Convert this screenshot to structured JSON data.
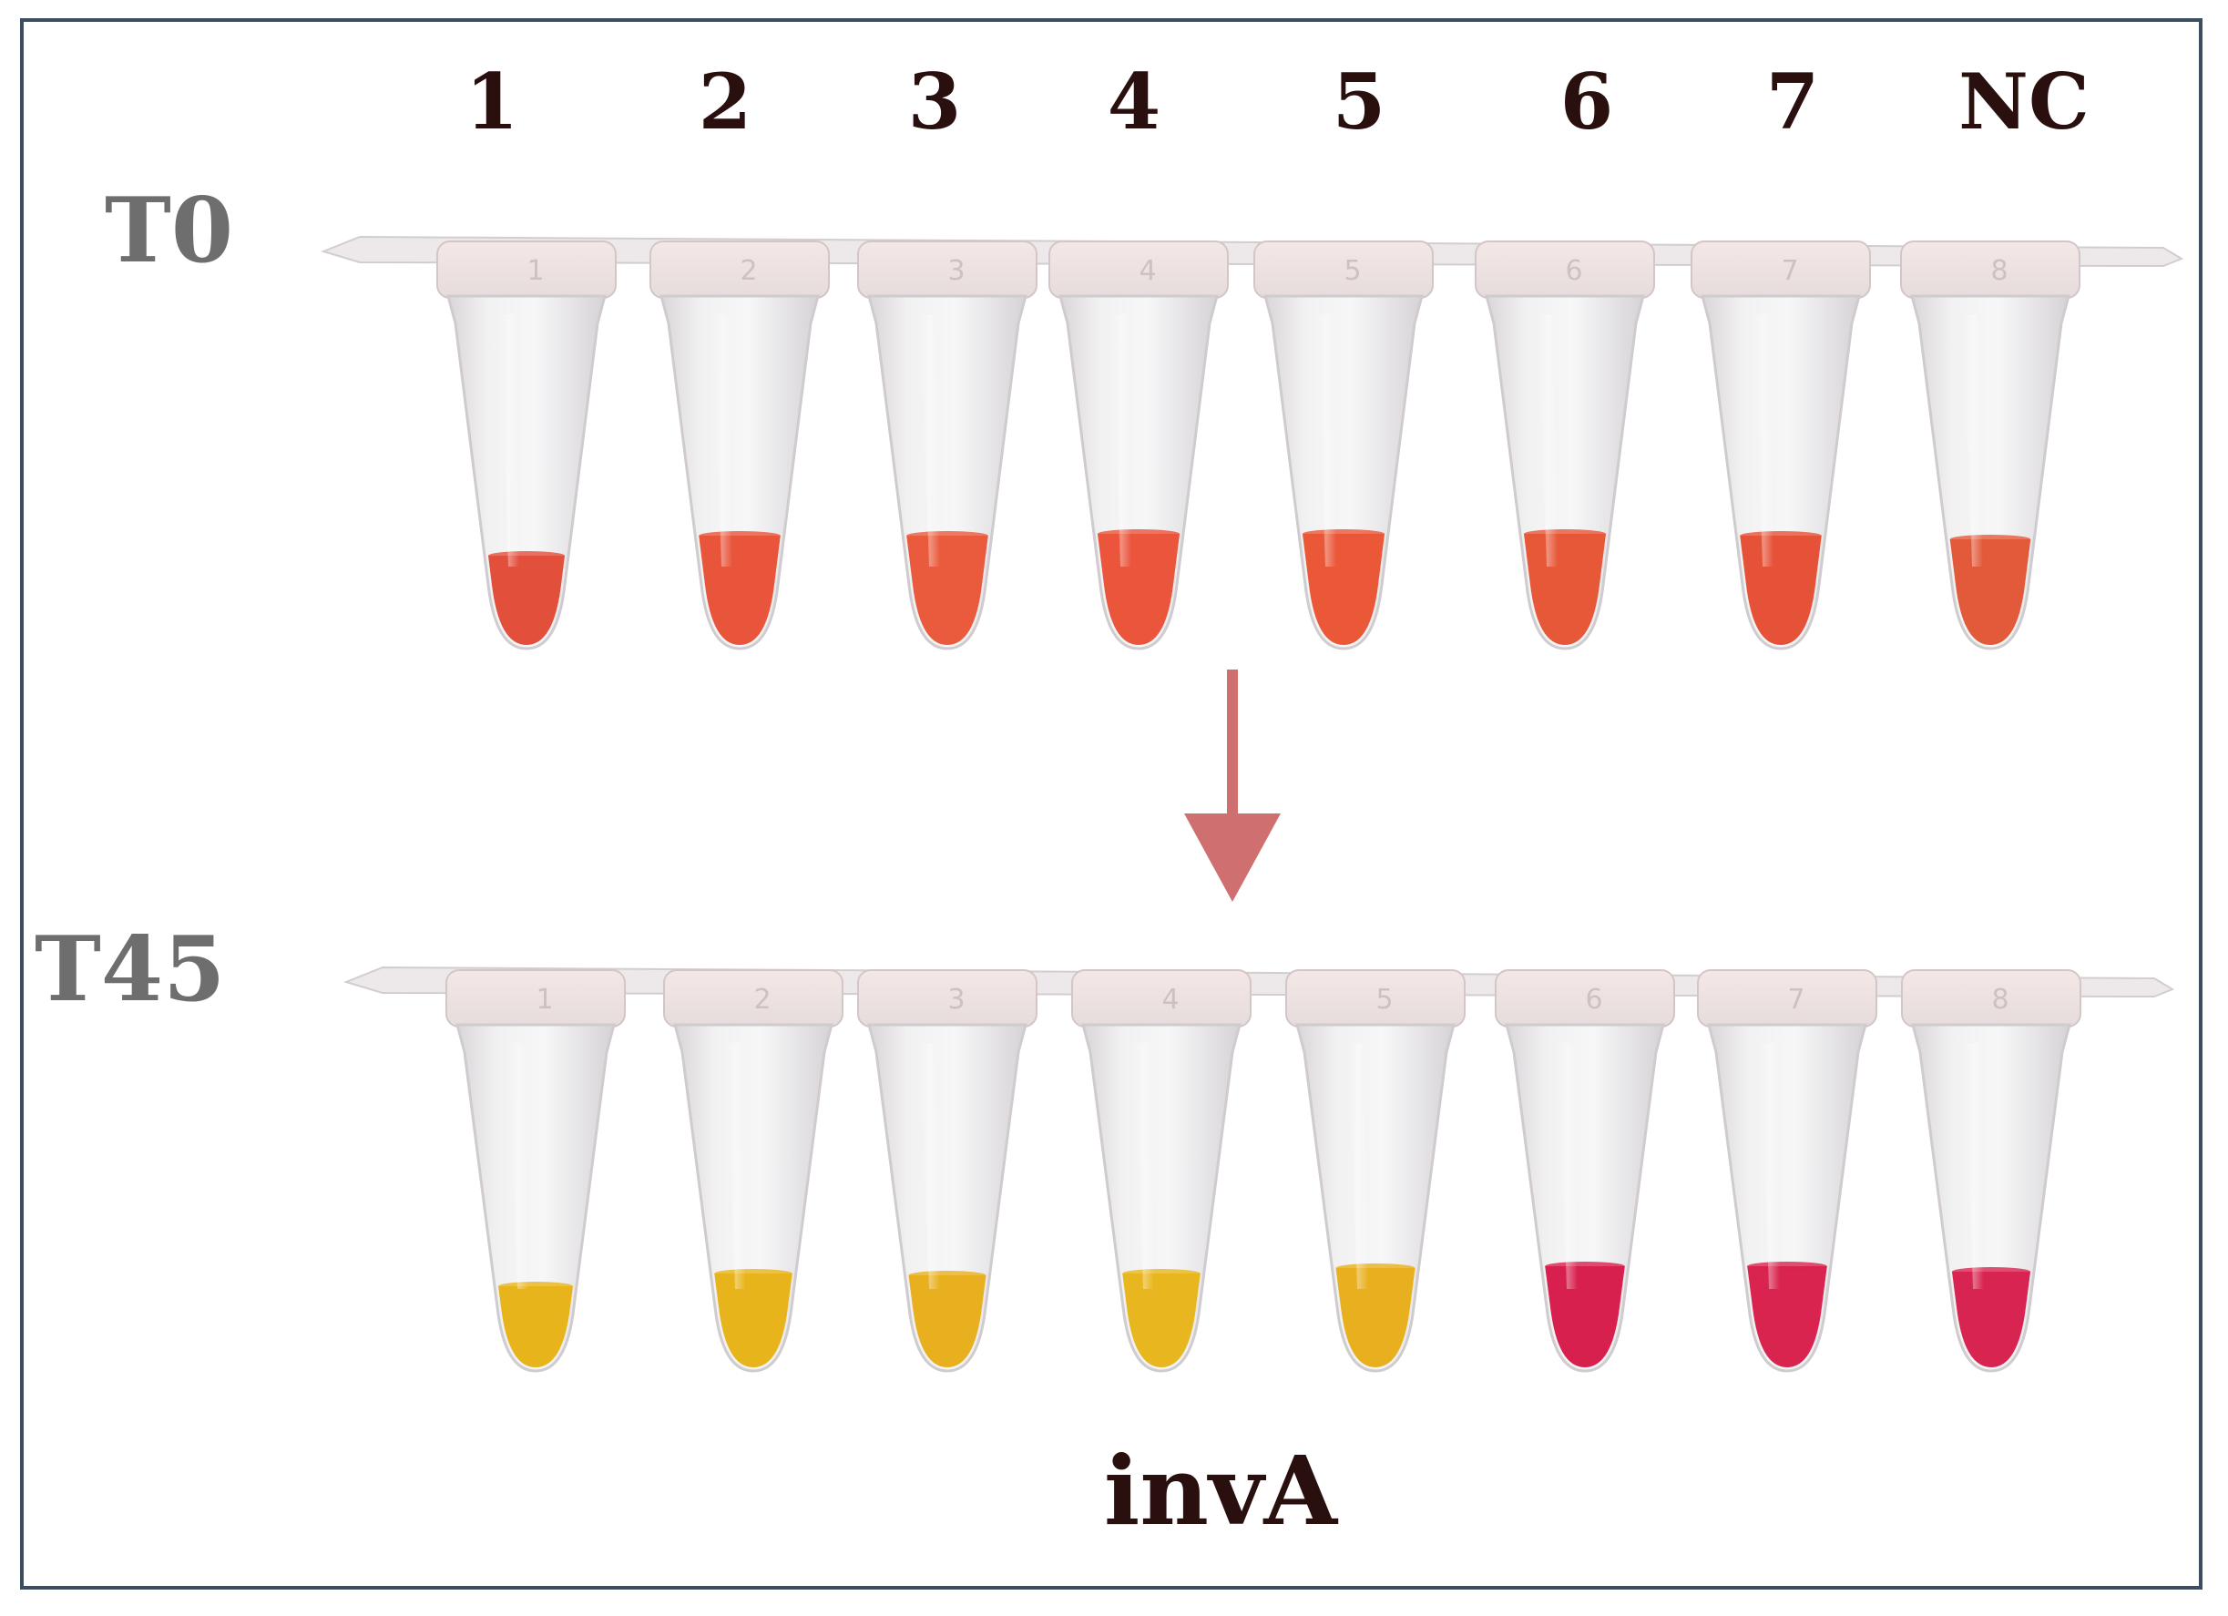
{
  "lanes": [
    "1",
    "2",
    "3",
    "4",
    "5",
    "6",
    "7",
    "NC"
  ],
  "tube_numbers": [
    "1",
    "2",
    "3",
    "4",
    "5",
    "6",
    "7",
    "8"
  ],
  "rows": [
    {
      "label": "T0",
      "colors": [
        "#e2503c",
        "#e8553a",
        "#ea5a3c",
        "#ea553c",
        "#ea5838",
        "#e65838",
        "#e65238",
        "#e25a3a"
      ]
    },
    {
      "label": "T45",
      "colors": [
        "#e8b41c",
        "#e8b41c",
        "#e8b01e",
        "#e8b61e",
        "#e8b01e",
        "#d8204e",
        "#d8244e",
        "#d82450"
      ]
    }
  ],
  "gene": "invA",
  "arrow_color": "#d06f6f"
}
